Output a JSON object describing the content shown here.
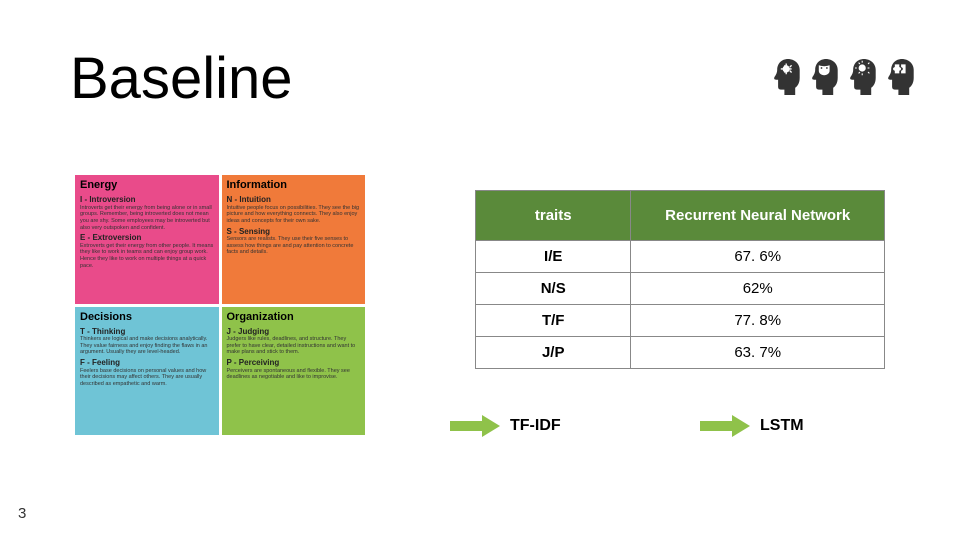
{
  "title": "Baseline",
  "pageNumber": "3",
  "quadrants": {
    "energy": {
      "title": "Energy",
      "bg": "#e94b8a",
      "sub1": "I - Introversion",
      "body1": "Introverts get their energy from being alone or in small groups. Remember, being introverted does not mean you are shy. Some employees may be introverted but also very outspoken and confident.",
      "sub2": "E - Extroversion",
      "body2": "Extroverts get their energy from other people. It means they like to work in teams and can enjoy group work. Hence they like to work on multiple things at a quick pace."
    },
    "information": {
      "title": "Information",
      "bg": "#f07a3a",
      "sub1": "N - Intuition",
      "body1": "Intuitive people focus on possibilities. They see the big picture and how everything connects. They also enjoy ideas and concepts for their own sake.",
      "sub2": "S - Sensing",
      "body2": "Sensors are realists. They use their five senses to assess how things are and pay attention to concrete facts and details."
    },
    "decisions": {
      "title": "Decisions",
      "bg": "#6fc4d6",
      "sub1": "T - Thinking",
      "body1": "Thinkers are logical and make decisions analytically. They value fairness and enjoy finding the flaws in an argument. Usually they are level-headed.",
      "sub2": "F - Feeling",
      "body2": "Feelers base decisions on personal values and how their decisions may affect others. They are usually described as empathetic and warm."
    },
    "organization": {
      "title": "Organization",
      "bg": "#8fc24a",
      "sub1": "J - Judging",
      "body1": "Judgers like rules, deadlines, and structure. They prefer to have clear, detailed instructions and want to make plans and stick to them.",
      "sub2": "P - Perceiving",
      "body2": "Perceivers are spontaneous and flexible. They see deadlines as negotiable and like to improvise."
    }
  },
  "table": {
    "headerBg": "#5a8a3a",
    "columns": [
      "traits",
      "Recurrent Neural Network"
    ],
    "rows": [
      [
        "I/E",
        "67. 6%"
      ],
      [
        "N/S",
        "62%"
      ],
      [
        "T/F",
        "77. 8%"
      ],
      [
        "J/P",
        "63. 7%"
      ]
    ]
  },
  "arrows": {
    "fill": "#8fc24a",
    "left": "TF-IDF",
    "right": "LSTM"
  }
}
